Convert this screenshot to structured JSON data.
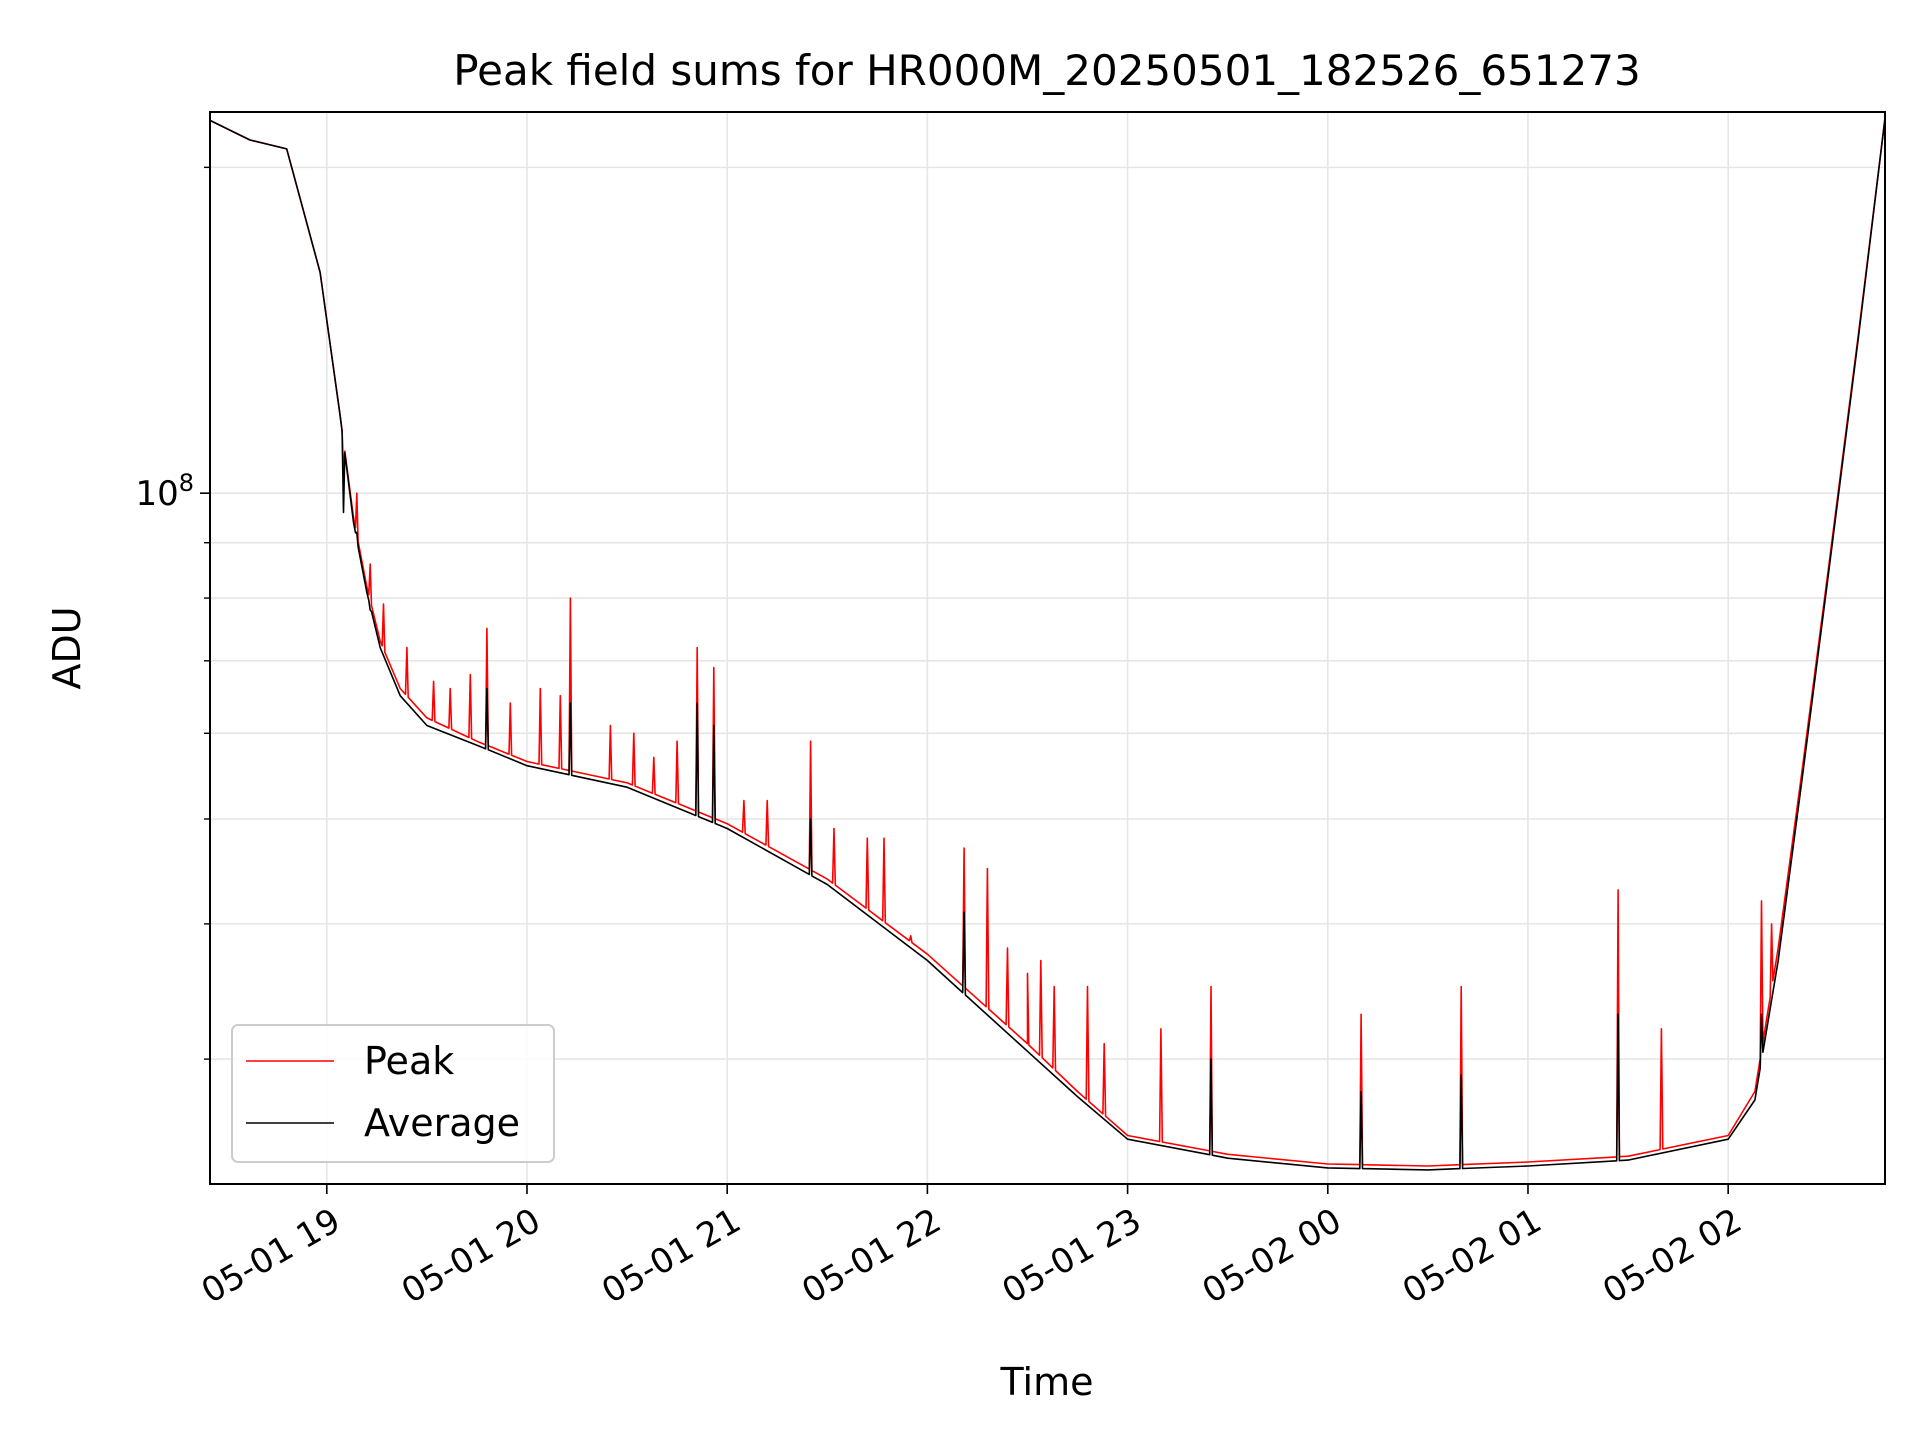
{
  "chart_data": {
    "type": "line",
    "title": "Peak field sums for HR000M_20250501_182526_651273",
    "xlabel": "Time",
    "ylabel": "ADU",
    "y_scale": "log",
    "grid": true,
    "legend_placement": "lower-left",
    "x_range": [
      "2025-05-01 18:25",
      "2025-05-02 02:47"
    ],
    "ylim": [
      23000000,
      225000000
    ],
    "x_ticks": [
      "05-01 19",
      "05-01 20",
      "05-01 21",
      "05-01 22",
      "05-01 23",
      "05-02 00",
      "05-02 01",
      "05-02 02"
    ],
    "y_ticks": [
      {
        "value": 100000000,
        "label": "10",
        "exp": "8"
      }
    ],
    "y_minor_ticks": [
      30000000,
      40000000,
      50000000,
      60000000,
      70000000,
      80000000,
      90000000,
      200000000
    ],
    "series": [
      {
        "name": "Peak",
        "color": "#ff0000",
        "points": [
          [
            "2025-05-01 18:25",
            221000000
          ],
          [
            "2025-05-01 18:37",
            212000000
          ],
          [
            "2025-05-01 18:48",
            208000000
          ],
          [
            "2025-05-01 18:58",
            160000000
          ],
          [
            "2025-05-01 19:04",
            118000000
          ],
          [
            "2025-05-01 19:08",
            95000000
          ],
          [
            "2025-05-01 19:12",
            82000000
          ],
          [
            "2025-05-01 19:16",
            73000000
          ],
          [
            "2025-05-01 19:22",
            66000000
          ],
          [
            "2025-05-01 19:30",
            62000000
          ],
          [
            "2025-05-01 19:45",
            59000000
          ],
          [
            "2025-05-01 20:00",
            56500000
          ],
          [
            "2025-05-01 20:30",
            54000000
          ],
          [
            "2025-05-01 21:00",
            49500000
          ],
          [
            "2025-05-01 21:30",
            44000000
          ],
          [
            "2025-05-01 22:00",
            37500000
          ],
          [
            "2025-05-01 22:30",
            31000000
          ],
          [
            "2025-05-01 22:45",
            28000000
          ],
          [
            "2025-05-01 23:00",
            25500000
          ],
          [
            "2025-05-01 23:30",
            24500000
          ],
          [
            "2025-05-02 00:00",
            24000000
          ],
          [
            "2025-05-02 00:30",
            23900000
          ],
          [
            "2025-05-02 01:00",
            24100000
          ],
          [
            "2025-05-02 01:30",
            24400000
          ],
          [
            "2025-05-02 02:00",
            25500000
          ],
          [
            "2025-05-02 02:08",
            28000000
          ],
          [
            "2025-05-02 02:15",
            38000000
          ],
          [
            "2025-05-02 02:22",
            55000000
          ],
          [
            "2025-05-02 02:30",
            85000000
          ],
          [
            "2025-05-02 02:39",
            140000000
          ],
          [
            "2025-05-02 02:47",
            222000000
          ]
        ],
        "spikes": [
          [
            "2025-05-01 19:05",
            104000000
          ],
          [
            "2025-05-01 19:09",
            100000000
          ],
          [
            "2025-05-01 19:13",
            86000000
          ],
          [
            "2025-05-01 19:17",
            79000000
          ],
          [
            "2025-05-01 19:24",
            72000000
          ],
          [
            "2025-05-01 19:32",
            67000000
          ],
          [
            "2025-05-01 19:37",
            66000000
          ],
          [
            "2025-05-01 19:43",
            68000000
          ],
          [
            "2025-05-01 19:48",
            75000000
          ],
          [
            "2025-05-01 19:55",
            64000000
          ],
          [
            "2025-05-01 20:04",
            66000000
          ],
          [
            "2025-05-01 20:10",
            65000000
          ],
          [
            "2025-05-01 20:13",
            80000000
          ],
          [
            "2025-05-01 20:25",
            61000000
          ],
          [
            "2025-05-01 20:32",
            60000000
          ],
          [
            "2025-05-01 20:38",
            57000000
          ],
          [
            "2025-05-01 20:45",
            59000000
          ],
          [
            "2025-05-01 20:51",
            72000000
          ],
          [
            "2025-05-01 20:56",
            69000000
          ],
          [
            "2025-05-01 21:05",
            52000000
          ],
          [
            "2025-05-01 21:12",
            52000000
          ],
          [
            "2025-05-01 21:25",
            59000000
          ],
          [
            "2025-05-01 21:32",
            49000000
          ],
          [
            "2025-05-01 21:42",
            48000000
          ],
          [
            "2025-05-01 21:47",
            48000000
          ],
          [
            "2025-05-01 21:55",
            39000000
          ],
          [
            "2025-05-01 22:11",
            47000000
          ],
          [
            "2025-05-01 22:18",
            45000000
          ],
          [
            "2025-05-01 22:24",
            38000000
          ],
          [
            "2025-05-01 22:30",
            36000000
          ],
          [
            "2025-05-01 22:34",
            37000000
          ],
          [
            "2025-05-01 22:38",
            35000000
          ],
          [
            "2025-05-01 22:48",
            35000000
          ],
          [
            "2025-05-01 22:53",
            31000000
          ],
          [
            "2025-05-01 23:10",
            32000000
          ],
          [
            "2025-05-01 23:25",
            35000000
          ],
          [
            "2025-05-02 00:10",
            33000000
          ],
          [
            "2025-05-02 00:40",
            35000000
          ],
          [
            "2025-05-02 01:27",
            43000000
          ],
          [
            "2025-05-02 01:40",
            32000000
          ],
          [
            "2025-05-02 02:10",
            42000000
          ],
          [
            "2025-05-02 02:13",
            40000000
          ]
        ]
      },
      {
        "name": "Average",
        "color": "#000000",
        "points": [
          [
            "2025-05-01 18:25",
            221000000
          ],
          [
            "2025-05-01 18:37",
            212000000
          ],
          [
            "2025-05-01 18:48",
            208000000
          ],
          [
            "2025-05-01 18:58",
            160000000
          ],
          [
            "2025-05-01 19:04",
            118000000
          ],
          [
            "2025-05-01 19:08",
            94000000
          ],
          [
            "2025-05-01 19:12",
            81000000
          ],
          [
            "2025-05-01 19:16",
            72000000
          ],
          [
            "2025-05-01 19:22",
            65000000
          ],
          [
            "2025-05-01 19:30",
            61000000
          ],
          [
            "2025-05-01 19:45",
            58500000
          ],
          [
            "2025-05-01 20:00",
            56000000
          ],
          [
            "2025-05-01 20:30",
            53500000
          ],
          [
            "2025-05-01 21:00",
            49000000
          ],
          [
            "2025-05-01 21:30",
            43500000
          ],
          [
            "2025-05-01 22:00",
            37000000
          ],
          [
            "2025-05-01 22:30",
            30500000
          ],
          [
            "2025-05-01 22:45",
            27700000
          ],
          [
            "2025-05-01 23:00",
            25300000
          ],
          [
            "2025-05-01 23:30",
            24300000
          ],
          [
            "2025-05-02 00:00",
            23800000
          ],
          [
            "2025-05-02 00:30",
            23700000
          ],
          [
            "2025-05-02 01:00",
            23900000
          ],
          [
            "2025-05-02 01:30",
            24200000
          ],
          [
            "2025-05-02 02:00",
            25300000
          ],
          [
            "2025-05-02 02:08",
            27500000
          ],
          [
            "2025-05-02 02:15",
            37000000
          ],
          [
            "2025-05-02 02:22",
            54000000
          ],
          [
            "2025-05-02 02:30",
            84000000
          ],
          [
            "2025-05-02 02:39",
            139000000
          ],
          [
            "2025-05-02 02:47",
            222000000
          ]
        ],
        "spikes": [
          [
            "2025-05-01 19:05",
            96000000
          ],
          [
            "2025-05-01 19:09",
            92000000
          ],
          [
            "2025-05-01 19:13",
            78000000
          ],
          [
            "2025-05-01 19:48",
            66000000
          ],
          [
            "2025-05-01 20:13",
            64000000
          ],
          [
            "2025-05-01 20:51",
            64000000
          ],
          [
            "2025-05-01 20:56",
            61000000
          ],
          [
            "2025-05-01 21:25",
            50000000
          ],
          [
            "2025-05-01 22:11",
            41000000
          ],
          [
            "2025-05-01 23:25",
            30000000
          ],
          [
            "2025-05-02 00:10",
            28000000
          ],
          [
            "2025-05-02 00:40",
            29000000
          ],
          [
            "2025-05-02 01:27",
            33000000
          ],
          [
            "2025-05-02 02:10",
            33000000
          ]
        ]
      }
    ]
  }
}
